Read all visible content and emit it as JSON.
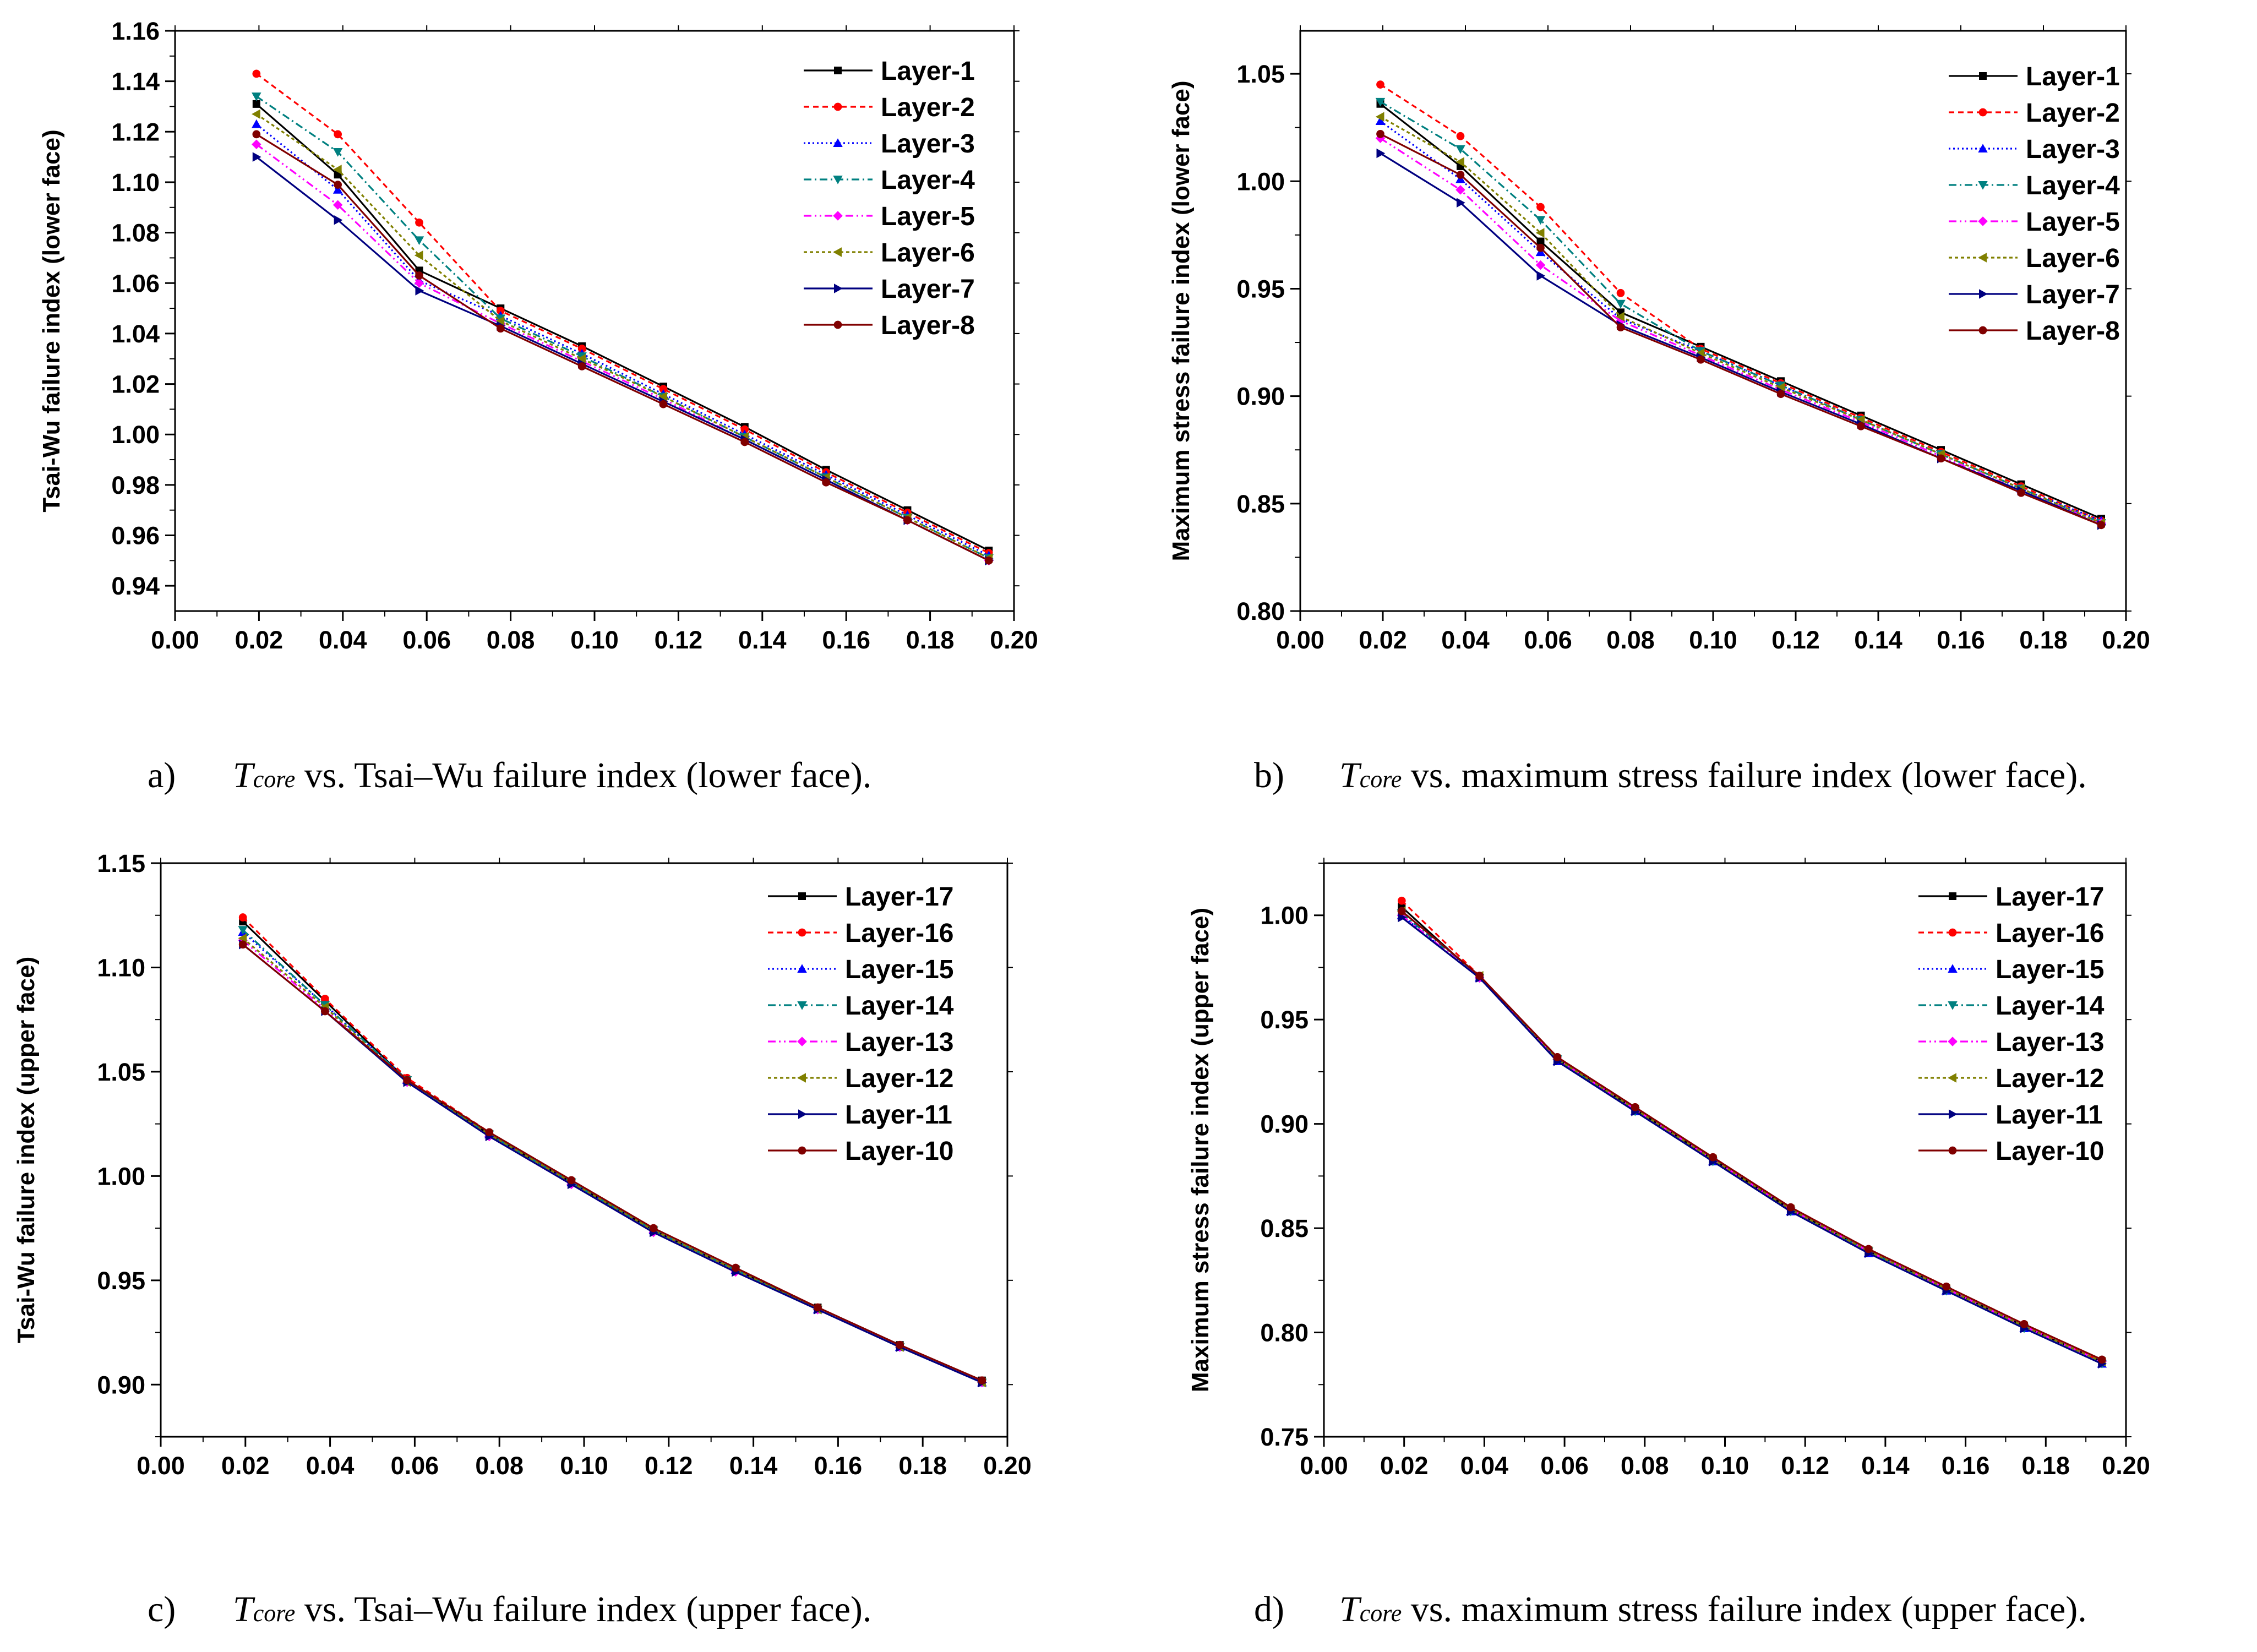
{
  "chart_data": [
    {
      "type": "line",
      "caption": {
        "prefix": "a)",
        "var": "T",
        "sub": "core",
        "rest": " vs. Tsai–Wu failure index (lower face)."
      },
      "xlabel": "",
      "ylabel": "Tsai-Wu failure index (lower face)",
      "xlim": [
        0,
        0.2
      ],
      "xstep": 0.02,
      "xdec": 2,
      "ylim": [
        0.93,
        1.16
      ],
      "yticks": [
        0.94,
        0.96,
        0.98,
        1.0,
        1.02,
        1.04,
        1.06,
        1.08,
        1.1,
        1.12,
        1.14,
        1.16
      ],
      "ydec": 2,
      "legend": "top-right",
      "x": [
        0.0194,
        0.0388,
        0.0582,
        0.0776,
        0.097,
        0.1164,
        0.1358,
        0.1552,
        0.1746,
        0.194
      ],
      "series": [
        {
          "name": "Layer-1",
          "color": "#000000",
          "dash": "",
          "marker": "square",
          "values": [
            1.131,
            1.103,
            1.065,
            1.05,
            1.035,
            1.019,
            1.003,
            0.986,
            0.97,
            0.954
          ]
        },
        {
          "name": "Layer-2",
          "color": "#FF0000",
          "dash": "10,7",
          "marker": "circle",
          "values": [
            1.143,
            1.119,
            1.084,
            1.049,
            1.034,
            1.018,
            1.002,
            0.985,
            0.969,
            0.953
          ]
        },
        {
          "name": "Layer-3",
          "color": "#0000FF",
          "dash": "3,5",
          "marker": "triangle-up",
          "values": [
            1.123,
            1.097,
            1.061,
            1.047,
            1.032,
            1.016,
            1.0,
            0.984,
            0.968,
            0.952
          ]
        },
        {
          "name": "Layer-4",
          "color": "#008080",
          "dash": "14,6,3,6",
          "marker": "triangle-down",
          "values": [
            1.134,
            1.112,
            1.077,
            1.046,
            1.031,
            1.015,
            0.999,
            0.983,
            0.967,
            0.951
          ]
        },
        {
          "name": "Layer-5",
          "color": "#FF00FF",
          "dash": "14,6,3,6,3,6",
          "marker": "diamond",
          "values": [
            1.115,
            1.091,
            1.06,
            1.044,
            1.029,
            1.014,
            0.998,
            0.982,
            0.966,
            0.95
          ]
        },
        {
          "name": "Layer-6",
          "color": "#808000",
          "dash": "6,5",
          "marker": "triangle-left",
          "values": [
            1.127,
            1.105,
            1.071,
            1.045,
            1.03,
            1.015,
            0.999,
            0.983,
            0.967,
            0.951
          ]
        },
        {
          "name": "Layer-7",
          "color": "#000080",
          "dash": "",
          "marker": "triangle-right",
          "values": [
            1.11,
            1.085,
            1.057,
            1.043,
            1.028,
            1.013,
            0.998,
            0.982,
            0.966,
            0.95
          ]
        },
        {
          "name": "Layer-8",
          "color": "#800000",
          "dash": "",
          "marker": "circle",
          "values": [
            1.119,
            1.099,
            1.063,
            1.042,
            1.027,
            1.012,
            0.997,
            0.981,
            0.966,
            0.95
          ]
        }
      ]
    },
    {
      "type": "line",
      "caption": {
        "prefix": "b)",
        "var": "T",
        "sub": "core",
        "rest": " vs. maximum stress failure index (lower face)."
      },
      "xlabel": "",
      "ylabel": "Maximum stress failure index (lower face)",
      "xlim": [
        0,
        0.2
      ],
      "xstep": 0.02,
      "xdec": 2,
      "ylim": [
        0.8,
        1.07
      ],
      "yticks": [
        0.8,
        0.85,
        0.9,
        0.95,
        1.0,
        1.05
      ],
      "ydec": 2,
      "legend": "top-right",
      "x": [
        0.0194,
        0.0388,
        0.0582,
        0.0776,
        0.097,
        0.1164,
        0.1358,
        0.1552,
        0.1746,
        0.194
      ],
      "series": [
        {
          "name": "Layer-1",
          "color": "#000000",
          "dash": "",
          "marker": "square",
          "values": [
            1.036,
            1.007,
            0.972,
            0.939,
            0.923,
            0.907,
            0.891,
            0.875,
            0.859,
            0.843
          ]
        },
        {
          "name": "Layer-2",
          "color": "#FF0000",
          "dash": "10,7",
          "marker": "circle",
          "values": [
            1.045,
            1.021,
            0.988,
            0.948,
            0.922,
            0.906,
            0.89,
            0.874,
            0.858,
            0.842
          ]
        },
        {
          "name": "Layer-3",
          "color": "#0000FF",
          "dash": "3,5",
          "marker": "triangle-up",
          "values": [
            1.028,
            1.001,
            0.967,
            0.936,
            0.921,
            0.905,
            0.889,
            0.873,
            0.857,
            0.842
          ]
        },
        {
          "name": "Layer-4",
          "color": "#008080",
          "dash": "14,6,3,6",
          "marker": "triangle-down",
          "values": [
            1.037,
            1.015,
            0.982,
            0.943,
            0.921,
            0.905,
            0.889,
            0.873,
            0.857,
            0.841
          ]
        },
        {
          "name": "Layer-5",
          "color": "#FF00FF",
          "dash": "14,6,3,6,3,6",
          "marker": "diamond",
          "values": [
            1.02,
            0.996,
            0.961,
            0.935,
            0.919,
            0.903,
            0.888,
            0.872,
            0.856,
            0.841
          ]
        },
        {
          "name": "Layer-6",
          "color": "#808000",
          "dash": "6,5",
          "marker": "triangle-left",
          "values": [
            1.03,
            1.009,
            0.976,
            0.937,
            0.92,
            0.904,
            0.889,
            0.873,
            0.857,
            0.841
          ]
        },
        {
          "name": "Layer-7",
          "color": "#000080",
          "dash": "",
          "marker": "triangle-right",
          "values": [
            1.013,
            0.99,
            0.956,
            0.933,
            0.918,
            0.902,
            0.887,
            0.871,
            0.856,
            0.84
          ]
        },
        {
          "name": "Layer-8",
          "color": "#800000",
          "dash": "",
          "marker": "circle",
          "values": [
            1.022,
            1.003,
            0.969,
            0.932,
            0.917,
            0.901,
            0.886,
            0.871,
            0.855,
            0.84
          ]
        }
      ]
    },
    {
      "type": "line",
      "caption": {
        "prefix": "c)",
        "var": "T",
        "sub": "core",
        "rest": " vs. Tsai–Wu failure index (upper face)."
      },
      "xlabel": "",
      "ylabel": "Tsai-Wu failure index (upper face)",
      "xlim": [
        0,
        0.2
      ],
      "xstep": 0.02,
      "xdec": 2,
      "ylim": [
        0.875,
        1.15
      ],
      "yticks": [
        0.9,
        0.95,
        1.0,
        1.05,
        1.1,
        1.15
      ],
      "ydec": 2,
      "legend": "top-right",
      "x": [
        0.0194,
        0.0388,
        0.0582,
        0.0776,
        0.097,
        0.1164,
        0.1358,
        0.1552,
        0.1746,
        0.194
      ],
      "series": [
        {
          "name": "Layer-17",
          "color": "#000000",
          "dash": "",
          "marker": "square",
          "values": [
            1.122,
            1.084,
            1.046,
            1.02,
            0.997,
            0.974,
            0.955,
            0.937,
            0.919,
            0.902
          ]
        },
        {
          "name": "Layer-16",
          "color": "#FF0000",
          "dash": "10,7",
          "marker": "circle",
          "values": [
            1.124,
            1.085,
            1.047,
            1.021,
            0.998,
            0.975,
            0.956,
            0.937,
            0.919,
            0.902
          ]
        },
        {
          "name": "Layer-15",
          "color": "#0000FF",
          "dash": "3,5",
          "marker": "triangle-up",
          "values": [
            1.117,
            1.082,
            1.046,
            1.02,
            0.997,
            0.974,
            0.955,
            0.936,
            0.918,
            0.901
          ]
        },
        {
          "name": "Layer-14",
          "color": "#008080",
          "dash": "14,6,3,6",
          "marker": "triangle-down",
          "values": [
            1.118,
            1.082,
            1.046,
            1.02,
            0.997,
            0.974,
            0.955,
            0.936,
            0.918,
            0.901
          ]
        },
        {
          "name": "Layer-13",
          "color": "#FF00FF",
          "dash": "14,6,3,6,3,6",
          "marker": "diamond",
          "values": [
            1.113,
            1.08,
            1.045,
            1.019,
            0.996,
            0.973,
            0.954,
            0.936,
            0.918,
            0.901
          ]
        },
        {
          "name": "Layer-12",
          "color": "#808000",
          "dash": "6,5",
          "marker": "triangle-left",
          "values": [
            1.114,
            1.081,
            1.045,
            1.02,
            0.997,
            0.974,
            0.955,
            0.936,
            0.918,
            0.901
          ]
        },
        {
          "name": "Layer-11",
          "color": "#000080",
          "dash": "",
          "marker": "triangle-right",
          "values": [
            1.111,
            1.079,
            1.045,
            1.019,
            0.996,
            0.973,
            0.954,
            0.936,
            0.918,
            0.901
          ]
        },
        {
          "name": "Layer-10",
          "color": "#800000",
          "dash": "",
          "marker": "circle",
          "values": [
            1.111,
            1.079,
            1.046,
            1.021,
            0.998,
            0.975,
            0.956,
            0.937,
            0.919,
            0.902
          ]
        }
      ]
    },
    {
      "type": "line",
      "caption": {
        "prefix": "d)",
        "var": "T",
        "sub": "core",
        "rest": " vs. maximum stress failure index (upper face)."
      },
      "xlabel": "",
      "ylabel": "Maximum stress failure index (upper face)",
      "xlim": [
        0,
        0.2
      ],
      "xstep": 0.02,
      "xdec": 2,
      "ylim": [
        0.75,
        1.025
      ],
      "yticks": [
        0.75,
        0.8,
        0.85,
        0.9,
        0.95,
        1.0
      ],
      "ydec": 2,
      "legend": "top-right",
      "x": [
        0.0194,
        0.0388,
        0.0582,
        0.0776,
        0.097,
        0.1164,
        0.1358,
        0.1552,
        0.1746,
        0.194
      ],
      "series": [
        {
          "name": "Layer-17",
          "color": "#000000",
          "dash": "",
          "marker": "square",
          "values": [
            1.004,
            0.97,
            0.931,
            0.907,
            0.883,
            0.859,
            0.839,
            0.821,
            0.803,
            0.786
          ]
        },
        {
          "name": "Layer-16",
          "color": "#FF0000",
          "dash": "10,7",
          "marker": "circle",
          "values": [
            1.007,
            0.971,
            0.932,
            0.908,
            0.884,
            0.86,
            0.84,
            0.822,
            0.804,
            0.786
          ]
        },
        {
          "name": "Layer-15",
          "color": "#0000FF",
          "dash": "3,5",
          "marker": "triangle-up",
          "values": [
            1.0,
            0.97,
            0.93,
            0.906,
            0.882,
            0.858,
            0.838,
            0.82,
            0.802,
            0.785
          ]
        },
        {
          "name": "Layer-14",
          "color": "#008080",
          "dash": "14,6,3,6",
          "marker": "triangle-down",
          "values": [
            1.001,
            0.97,
            0.931,
            0.906,
            0.882,
            0.858,
            0.839,
            0.82,
            0.802,
            0.785
          ]
        },
        {
          "name": "Layer-13",
          "color": "#FF00FF",
          "dash": "14,6,3,6,3,6",
          "marker": "diamond",
          "values": [
            1.0,
            0.97,
            0.931,
            0.907,
            0.883,
            0.859,
            0.839,
            0.821,
            0.803,
            0.786
          ]
        },
        {
          "name": "Layer-12",
          "color": "#808000",
          "dash": "6,5",
          "marker": "triangle-left",
          "values": [
            1.002,
            0.971,
            0.931,
            0.907,
            0.883,
            0.859,
            0.839,
            0.821,
            0.803,
            0.786
          ]
        },
        {
          "name": "Layer-11",
          "color": "#000080",
          "dash": "",
          "marker": "triangle-right",
          "values": [
            0.999,
            0.97,
            0.93,
            0.906,
            0.882,
            0.858,
            0.838,
            0.82,
            0.802,
            0.785
          ]
        },
        {
          "name": "Layer-10",
          "color": "#800000",
          "dash": "",
          "marker": "circle",
          "values": [
            1.002,
            0.971,
            0.932,
            0.908,
            0.884,
            0.86,
            0.84,
            0.822,
            0.804,
            0.787
          ]
        }
      ]
    }
  ]
}
